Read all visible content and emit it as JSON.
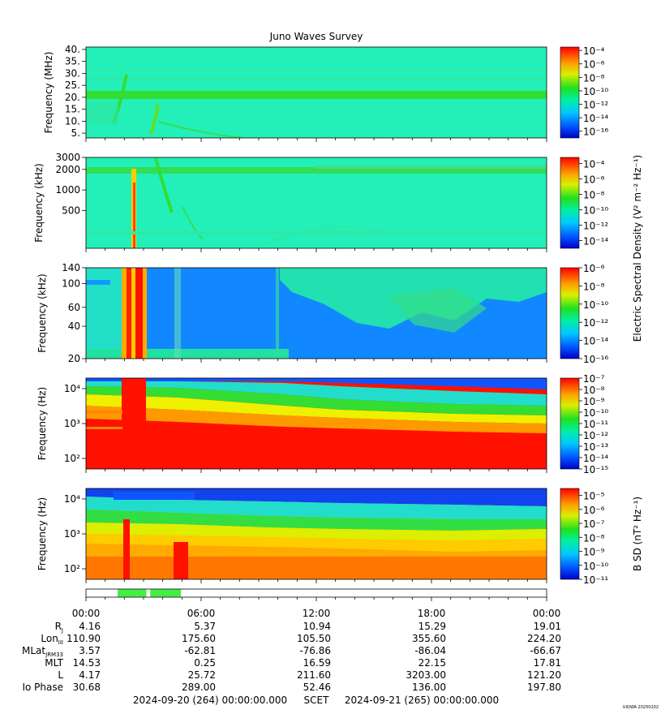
{
  "title": "Juno Waves Survey",
  "watermark": "UIOWA 20250202",
  "shared_colorbar_label": "Electric Spectral Density (V² m⁻² Hz⁻¹)",
  "chart_data": [
    {
      "type": "heatmap",
      "panel": "HFR high band",
      "ylabel": "Frequency (MHz)",
      "yticks": [
        "40.",
        "35.",
        "30.",
        "25.",
        "20.",
        "15.",
        "10.",
        "5."
      ],
      "ytick_values": [
        40,
        35,
        30,
        25,
        20,
        15,
        10,
        5
      ],
      "ylim": [
        3,
        41
      ],
      "yscale": "linear",
      "colorbar_ticks": [
        "10⁻⁴",
        "10⁻⁶",
        "10⁻⁸",
        "10⁻¹⁰",
        "10⁻¹²",
        "10⁻¹⁴",
        "10⁻¹⁶"
      ],
      "colorbar_range_exp": [
        -17,
        -3.5
      ],
      "colorbar_label": ""
    },
    {
      "type": "heatmap",
      "panel": "HFR low band",
      "ylabel": "Frequency (kHz)",
      "yticks": [
        "3000",
        "2000",
        "1000",
        "500"
      ],
      "ytick_values": [
        3000,
        2000,
        1000,
        500
      ],
      "ylim": [
        140,
        3000
      ],
      "yscale": "log",
      "colorbar_ticks": [
        "10⁻⁴",
        "10⁻⁶",
        "10⁻⁸",
        "10⁻¹⁰",
        "10⁻¹²",
        "10⁻¹⁴"
      ],
      "colorbar_range_exp": [
        -15,
        -3.2
      ],
      "colorbar_label": ""
    },
    {
      "type": "heatmap",
      "panel": "LFR high",
      "ylabel": "Frequency (kHz)",
      "yticks": [
        "140",
        "100",
        "60",
        "40",
        "20"
      ],
      "ytick_values": [
        140,
        100,
        60,
        40,
        20
      ],
      "ylim": [
        20,
        140
      ],
      "yscale": "log",
      "colorbar_ticks": [
        "10⁻⁶",
        "10⁻⁸",
        "10⁻¹⁰",
        "10⁻¹²",
        "10⁻¹⁴",
        "10⁻¹⁶"
      ],
      "colorbar_range_exp": [
        -16,
        -6
      ],
      "colorbar_label": ""
    },
    {
      "type": "heatmap",
      "panel": "LFR low electric",
      "ylabel": "Frequency (Hz)",
      "yticks": [
        "10⁴",
        "10³",
        "10²"
      ],
      "ytick_values": [
        10000,
        1000,
        100
      ],
      "ylim": [
        50,
        20000
      ],
      "yscale": "log",
      "colorbar_ticks": [
        "10⁻⁷",
        "10⁻⁸",
        "10⁻⁹",
        "10⁻¹⁰",
        "10⁻¹¹",
        "10⁻¹²",
        "10⁻¹³",
        "10⁻¹⁴",
        "10⁻¹⁵"
      ],
      "colorbar_range_exp": [
        -15,
        -7
      ],
      "colorbar_label": ""
    },
    {
      "type": "heatmap",
      "panel": "LFR low magnetic",
      "ylabel": "Frequency (Hz)",
      "yticks": [
        "10⁴",
        "10³",
        "10²"
      ],
      "ytick_values": [
        10000,
        1000,
        100
      ],
      "ylim": [
        50,
        20000
      ],
      "yscale": "log",
      "colorbar_ticks": [
        "10⁻⁵",
        "10⁻⁶",
        "10⁻⁷",
        "10⁻⁸",
        "10⁻⁹",
        "10⁻¹⁰",
        "10⁻¹¹"
      ],
      "colorbar_range_exp": [
        -11,
        -4.5
      ],
      "colorbar_label": "B SD (nT² Hz⁻¹)"
    }
  ],
  "xaxis": {
    "ticks": [
      "00:00",
      "06:00",
      "12:00",
      "18:00",
      "00:00"
    ],
    "start_label": "2024-09-20 (264) 00:00:00.000",
    "center_label": "SCET",
    "end_label": "2024-09-21 (265) 00:00:00.000"
  },
  "timeline_bar": {
    "segments_hours": [
      [
        1.65,
        3.15
      ],
      [
        3.35,
        4.95
      ]
    ],
    "color": "#44ee44"
  },
  "ephemeris": [
    {
      "label": "R",
      "sub": "J",
      "values": [
        "4.16",
        "5.37",
        "10.94",
        "15.29",
        "19.01"
      ]
    },
    {
      "label": "Lon",
      "sub": "III",
      "values": [
        "110.90",
        "175.60",
        "105.50",
        "355.60",
        "224.20"
      ]
    },
    {
      "label": "MLat",
      "sub": "JRM33",
      "values": [
        "3.57",
        "-62.81",
        "-76.86",
        "-86.04",
        "-66.67"
      ]
    },
    {
      "label": "MLT",
      "sub": "",
      "values": [
        "14.53",
        "0.25",
        "16.59",
        "22.15",
        "17.81"
      ]
    },
    {
      "label": "L",
      "sub": "",
      "values": [
        "4.17",
        "25.72",
        "211.60",
        "3203.00",
        "121.20"
      ]
    },
    {
      "label": "Io Phase",
      "sub": "",
      "values": [
        "30.68",
        "289.00",
        "52.46",
        "136.00",
        "197.80"
      ]
    }
  ],
  "colors": {
    "cyan_bg": "#22f0b8",
    "blue": "#1177ff",
    "deep_blue": "#0000cc",
    "green": "#33dd33",
    "yellow": "#f4f400",
    "orange": "#ff9900",
    "red": "#ff1100"
  }
}
